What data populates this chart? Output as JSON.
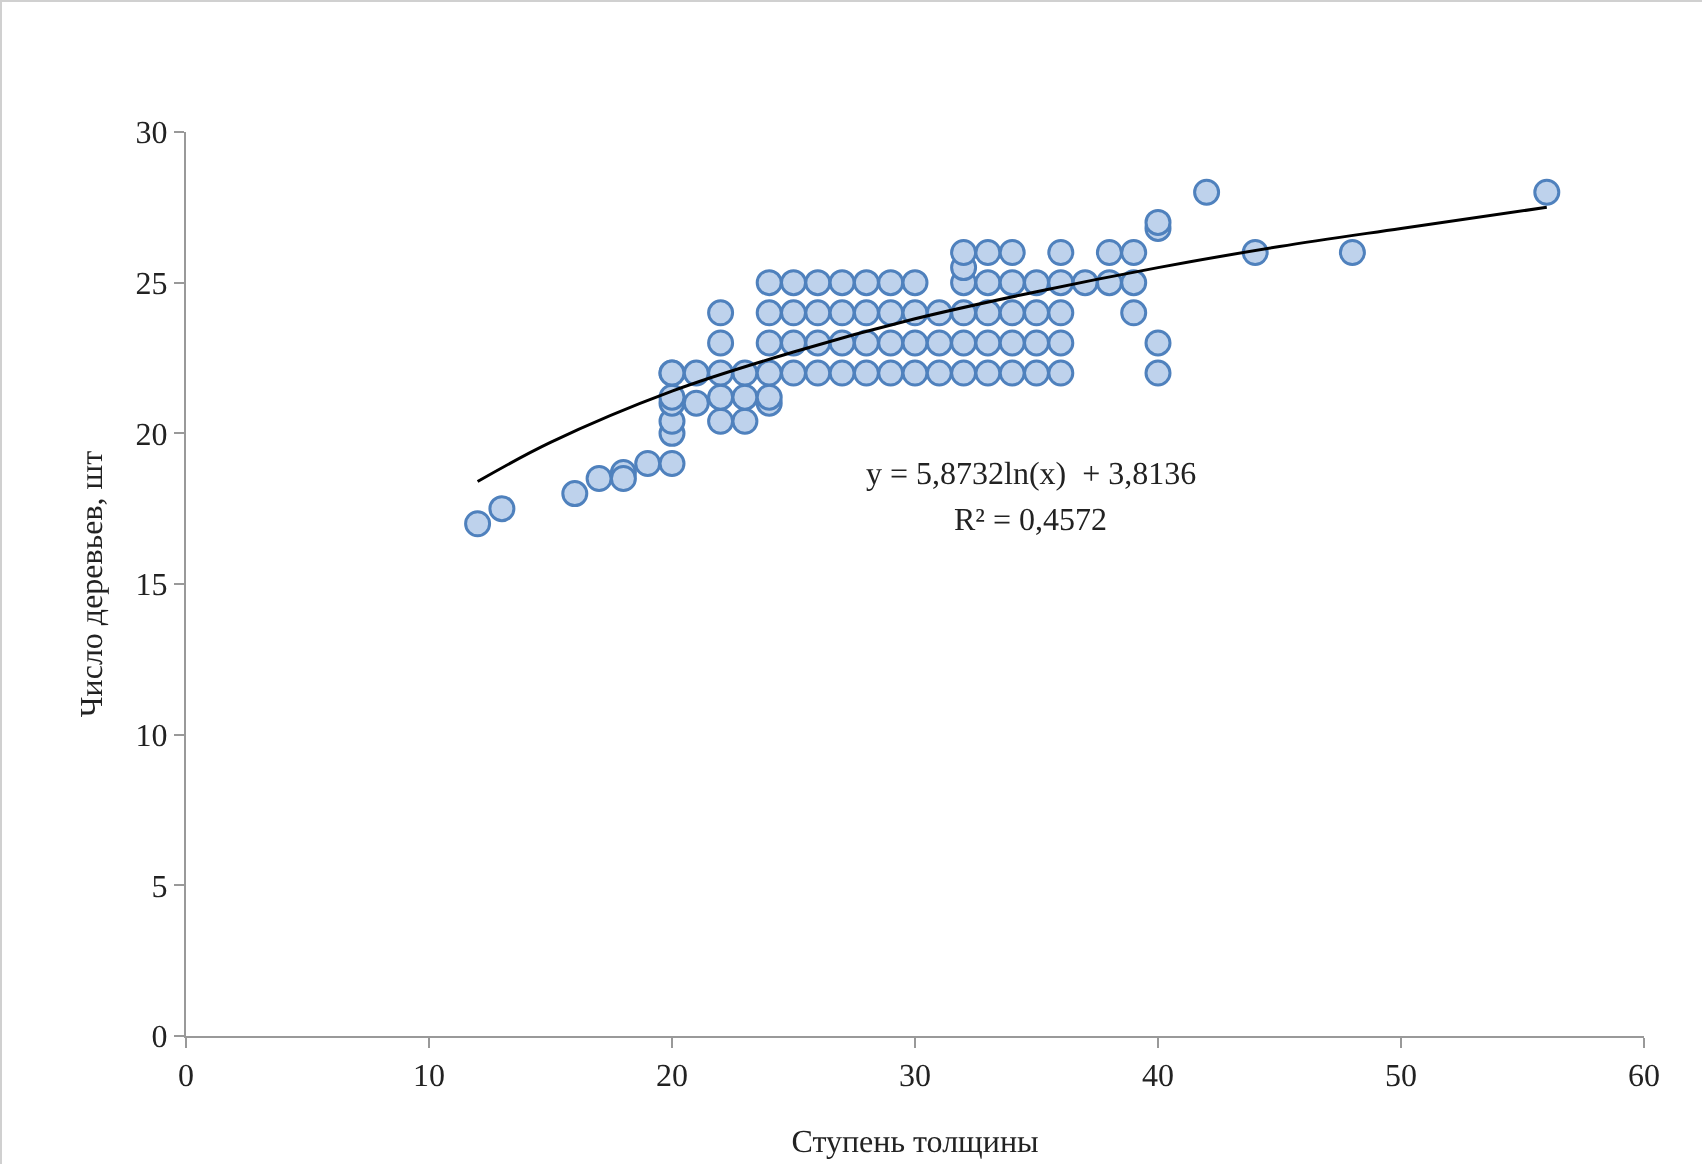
{
  "chart_data": {
    "type": "scatter",
    "xlabel": "Ступень толщины",
    "ylabel": "Число деревьев, шт",
    "xlim": [
      0,
      60
    ],
    "xticks": [
      0,
      10,
      20,
      30,
      40,
      50,
      60
    ],
    "ylim": [
      0,
      30
    ],
    "yticks": [
      0,
      5,
      10,
      15,
      20,
      25,
      30
    ],
    "grid": false,
    "marker": "circle",
    "annotations": [
      "y = 5,8732ln(x)  + 3,8136",
      "R² = 0,4572"
    ],
    "series": [
      {
        "color": "#4f81bd",
        "x": [
          12,
          13,
          16,
          17,
          18,
          18,
          19,
          20,
          20,
          20,
          20,
          20,
          20,
          20,
          21,
          21,
          22,
          22,
          22,
          22,
          22,
          23,
          23,
          23,
          24,
          24,
          24,
          24,
          24,
          24,
          25,
          25,
          25,
          25,
          26,
          26,
          26,
          26,
          27,
          27,
          27,
          27,
          28,
          28,
          28,
          28,
          29,
          29,
          29,
          29,
          30,
          30,
          30,
          30,
          31,
          31,
          31,
          32,
          32,
          32,
          32,
          32,
          32,
          33,
          33,
          33,
          33,
          33,
          34,
          34,
          34,
          34,
          34,
          35,
          35,
          35,
          35,
          36,
          36,
          36,
          36,
          36,
          37,
          38,
          38,
          39,
          39,
          39,
          40,
          40,
          40,
          40,
          42,
          44,
          48,
          56
        ],
        "values": [
          17,
          17.5,
          18,
          18.5,
          18.7,
          18.5,
          19,
          19,
          20,
          20.4,
          21,
          21.2,
          22,
          22,
          21,
          22,
          20.4,
          21.2,
          22,
          23,
          24,
          20.4,
          21.2,
          22,
          21,
          21.2,
          22,
          23,
          24,
          25,
          22,
          23,
          24,
          25,
          22,
          23,
          24,
          25,
          22,
          23,
          24,
          25,
          22,
          23,
          24,
          25,
          22,
          23,
          24,
          25,
          22,
          23,
          24,
          25,
          22,
          23,
          24,
          22,
          23,
          24,
          25,
          25.5,
          26,
          22,
          23,
          24,
          25,
          26,
          22,
          23,
          24,
          25,
          26,
          22,
          23,
          24,
          25,
          22,
          23,
          24,
          25,
          26,
          25,
          25,
          26,
          24,
          25,
          26,
          22,
          23,
          26.8,
          27,
          28,
          26,
          26,
          28
        ]
      },
      {
        "type": "line",
        "color": "#000000",
        "marker": "none",
        "line_style": "solid",
        "x": [
          12,
          15,
          20,
          25,
          30,
          35,
          40,
          45,
          50,
          56
        ],
        "values": [
          18.4,
          19.7,
          21.4,
          22.7,
          23.8,
          24.7,
          25.5,
          26.2,
          26.8,
          27.5
        ]
      }
    ]
  }
}
